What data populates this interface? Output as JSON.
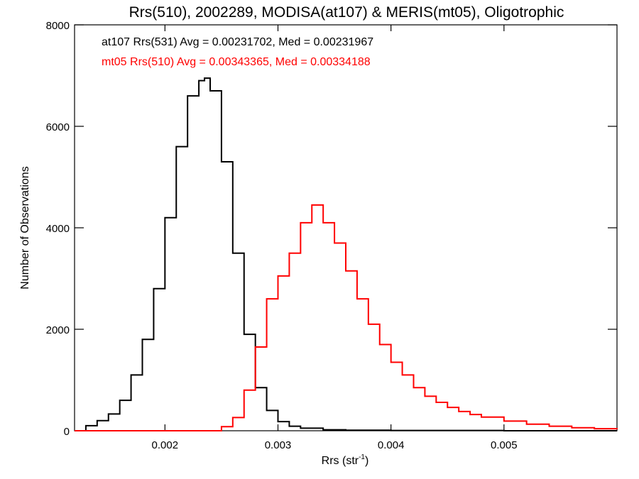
{
  "chart_data": {
    "type": "line",
    "title": "Rrs(510), 2002289, MODISA(at107) & MERIS(mt05), Oligotrophic",
    "xlabel_main": "Rrs (str",
    "xlabel_sup": "-1",
    "xlabel_close": ")",
    "ylabel": "Number of Observations",
    "xlim": [
      0.0012,
      0.006
    ],
    "ylim": [
      0,
      8000
    ],
    "xticks": [
      {
        "value": 0.002,
        "label": "0.002"
      },
      {
        "value": 0.003,
        "label": "0.003"
      },
      {
        "value": 0.004,
        "label": "0.004"
      },
      {
        "value": 0.005,
        "label": "0.005"
      }
    ],
    "yticks": [
      {
        "value": 0,
        "label": "0"
      },
      {
        "value": 2000,
        "label": "2000"
      },
      {
        "value": 4000,
        "label": "4000"
      },
      {
        "value": 6000,
        "label": "6000"
      },
      {
        "value": 8000,
        "label": "8000"
      }
    ],
    "grid": false,
    "legend_position": "top-left",
    "series": [
      {
        "name": "at107 Rrs(531) Avg = 0.00231702, Med = 0.00231967",
        "color": "#000000",
        "x": [
          0.0012,
          0.0013,
          0.0014,
          0.0015,
          0.0016,
          0.0017,
          0.0018,
          0.0019,
          0.002,
          0.0021,
          0.0022,
          0.0023,
          0.00235,
          0.0024,
          0.0025,
          0.0026,
          0.0027,
          0.0028,
          0.0029,
          0.003,
          0.0031,
          0.0032,
          0.0034,
          0.0036,
          0.004,
          0.005,
          0.006
        ],
        "y": [
          0,
          100,
          200,
          330,
          600,
          1100,
          1800,
          2800,
          4200,
          5600,
          6600,
          6900,
          6950,
          6700,
          5300,
          3500,
          1900,
          850,
          400,
          180,
          90,
          50,
          20,
          10,
          5,
          0,
          0
        ]
      },
      {
        "name": "mt05 Rrs(510) Avg = 0.00343365, Med = 0.00334188",
        "color": "#ff0000",
        "x": [
          0.0012,
          0.002,
          0.0024,
          0.0025,
          0.0026,
          0.0027,
          0.0028,
          0.0029,
          0.003,
          0.0031,
          0.0032,
          0.0033,
          0.0034,
          0.0035,
          0.0036,
          0.0037,
          0.0038,
          0.0039,
          0.004,
          0.0041,
          0.0042,
          0.0043,
          0.0044,
          0.0045,
          0.0046,
          0.0047,
          0.0048,
          0.005,
          0.0052,
          0.0054,
          0.0056,
          0.0058,
          0.006
        ],
        "y": [
          0,
          0,
          0,
          80,
          260,
          800,
          1650,
          2600,
          3050,
          3500,
          4100,
          4450,
          4100,
          3700,
          3150,
          2600,
          2100,
          1700,
          1350,
          1100,
          850,
          680,
          560,
          460,
          380,
          320,
          270,
          190,
          130,
          90,
          60,
          40,
          30
        ]
      }
    ]
  }
}
